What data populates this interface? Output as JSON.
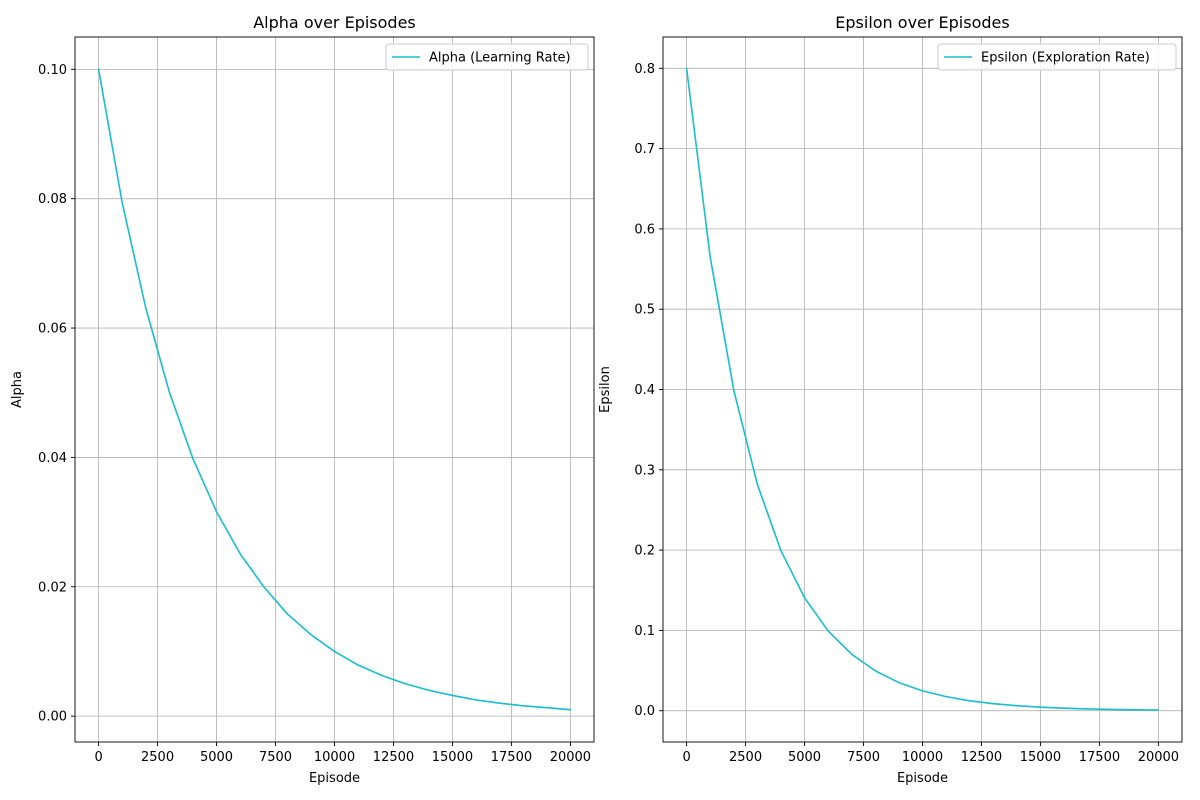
{
  "chart_data": [
    {
      "type": "line",
      "title": "Alpha over Episodes",
      "xlabel": "Episode",
      "ylabel": "Alpha",
      "xlim": [
        -1000,
        21000
      ],
      "ylim": [
        -0.004,
        0.105
      ],
      "xticks": [
        0,
        2500,
        5000,
        7500,
        10000,
        12500,
        15000,
        17500,
        20000
      ],
      "xtick_labels": [
        "0",
        "2500",
        "5000",
        "7500",
        "10000",
        "12500",
        "15000",
        "17500",
        "20000"
      ],
      "yticks": [
        0.0,
        0.02,
        0.04,
        0.06,
        0.08,
        0.1
      ],
      "ytick_labels": [
        "0.00",
        "0.02",
        "0.04",
        "0.06",
        "0.08",
        "0.10"
      ],
      "grid": true,
      "legend_position": "top-right",
      "series": [
        {
          "name": "Alpha (Learning Rate)",
          "color": "#17becf",
          "x": [
            0,
            1000,
            2000,
            3000,
            4000,
            5000,
            6000,
            7000,
            8000,
            9000,
            10000,
            11000,
            12000,
            13000,
            14000,
            15000,
            16000,
            17000,
            18000,
            19000,
            20000
          ],
          "y": [
            0.1,
            0.0794,
            0.0631,
            0.0501,
            0.0398,
            0.0316,
            0.0251,
            0.02,
            0.0158,
            0.0126,
            0.01,
            0.0079,
            0.0063,
            0.005,
            0.004,
            0.0032,
            0.0025,
            0.002,
            0.0016,
            0.0013,
            0.001
          ]
        }
      ]
    },
    {
      "type": "line",
      "title": "Epsilon over Episodes",
      "xlabel": "Episode",
      "ylabel": "Epsilon",
      "xlim": [
        -1000,
        21000
      ],
      "ylim": [
        -0.039,
        0.839
      ],
      "xticks": [
        0,
        2500,
        5000,
        7500,
        10000,
        12500,
        15000,
        17500,
        20000
      ],
      "xtick_labels": [
        "0",
        "2500",
        "5000",
        "7500",
        "10000",
        "12500",
        "15000",
        "17500",
        "20000"
      ],
      "yticks": [
        0.0,
        0.1,
        0.2,
        0.3,
        0.4,
        0.5,
        0.6,
        0.7,
        0.8
      ],
      "ytick_labels": [
        "0.0",
        "0.1",
        "0.2",
        "0.3",
        "0.4",
        "0.5",
        "0.6",
        "0.7",
        "0.8"
      ],
      "grid": true,
      "legend_position": "top-right",
      "series": [
        {
          "name": "Epsilon (Exploration Rate)",
          "color": "#17becf",
          "x": [
            0,
            1000,
            2000,
            3000,
            4000,
            5000,
            6000,
            7000,
            8000,
            9000,
            10000,
            11000,
            12000,
            13000,
            14000,
            15000,
            16000,
            17000,
            18000,
            19000,
            20000
          ],
          "y": [
            0.8,
            0.5651,
            0.3992,
            0.2819,
            0.1991,
            0.1406,
            0.0993,
            0.0702,
            0.0496,
            0.035,
            0.0247,
            0.0175,
            0.0123,
            0.0087,
            0.0062,
            0.0044,
            0.0031,
            0.0022,
            0.0015,
            0.0011,
            0.0008
          ]
        }
      ]
    }
  ]
}
